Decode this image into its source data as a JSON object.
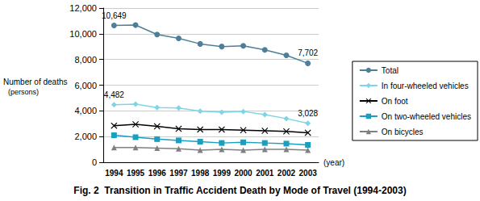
{
  "chart_data": {
    "type": "line",
    "title": "Fig. 2  Transition in Traffic Accident Death by Mode of Travel (1994-2003)",
    "ylabel": "Number of deaths",
    "ylabel_unit": "(persons)",
    "xlabel": "(year)",
    "categories": [
      "1994",
      "1995",
      "1996",
      "1997",
      "1998",
      "1999",
      "2000",
      "2001",
      "2002",
      "2003"
    ],
    "series": [
      {
        "name": "Total",
        "color": "#4d7f99",
        "marker": "circle",
        "values": [
          10649,
          10679,
          9942,
          9640,
          9211,
          9006,
          9066,
          8747,
          8326,
          7702
        ],
        "value_labels": [
          "10,649",
          null,
          null,
          null,
          null,
          null,
          null,
          null,
          null,
          "7,702"
        ]
      },
      {
        "name": "In four-wheeled vehicles",
        "color": "#7fd4e6",
        "marker": "diamond",
        "values": [
          4482,
          4520,
          4250,
          4230,
          3970,
          3900,
          3950,
          3700,
          3400,
          3028
        ],
        "value_labels": [
          "4,482",
          null,
          null,
          null,
          null,
          null,
          null,
          null,
          null,
          "3,028"
        ]
      },
      {
        "name": "On foot",
        "color": "#000000",
        "marker": "cross",
        "values": [
          2850,
          2950,
          2800,
          2600,
          2550,
          2550,
          2500,
          2450,
          2400,
          2300
        ]
      },
      {
        "name": "On two-wheeled vehicles",
        "color": "#1a9fbf",
        "marker": "square",
        "values": [
          2100,
          1950,
          1800,
          1700,
          1600,
          1500,
          1550,
          1500,
          1450,
          1350
        ]
      },
      {
        "name": "On bicycles",
        "color": "#808080",
        "marker": "triangle",
        "values": [
          1150,
          1150,
          1100,
          1050,
          950,
          1000,
          950,
          1000,
          1000,
          950
        ]
      }
    ],
    "ylim": [
      0,
      12000
    ],
    "yticks": [
      0,
      {
        "value": 2000,
        "label": "2,000"
      },
      {
        "value": 4000,
        "label": "4,000"
      },
      {
        "value": 6000,
        "label": "6,000"
      },
      {
        "value": 8000,
        "label": "8,000"
      },
      {
        "value": 10000,
        "label": "10,000"
      },
      {
        "value": 12000,
        "label": "12,000"
      }
    ],
    "grid": true,
    "legend": "right",
    "data_labels": true
  }
}
